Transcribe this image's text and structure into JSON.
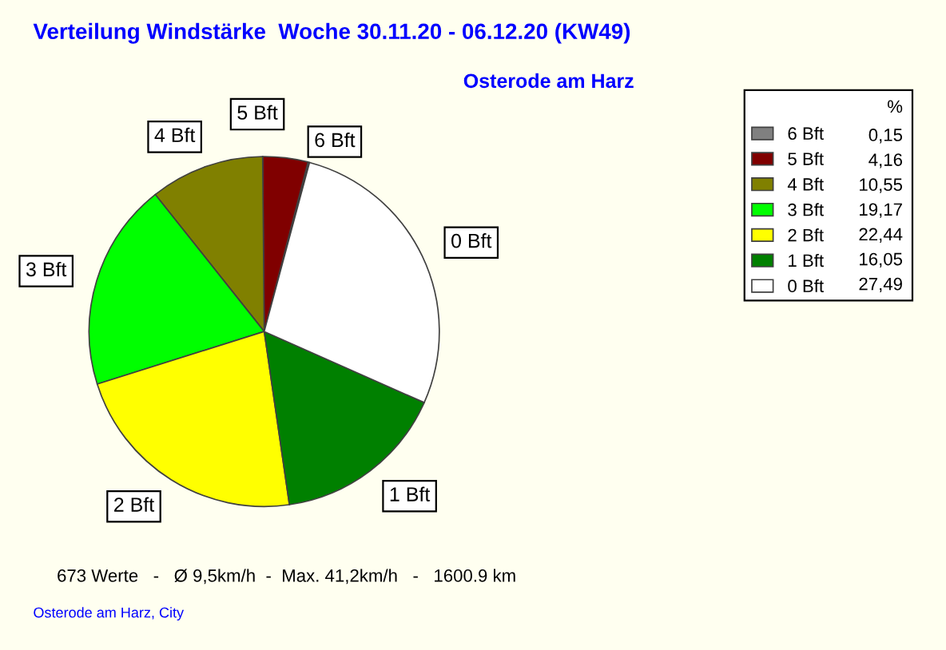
{
  "chart_data": {
    "type": "pie",
    "title": "Verteilung Windstärke  Woche 30.11.20 - 06.12.20 (KW49)",
    "subtitle": "Osterode am Harz",
    "legend_title": "%",
    "categories": [
      "6 Bft",
      "5 Bft",
      "4 Bft",
      "3 Bft",
      "2 Bft",
      "1 Bft",
      "0 Bft"
    ],
    "values": [
      0.15,
      4.16,
      10.55,
      19.17,
      22.44,
      16.05,
      27.49
    ],
    "value_labels": [
      "0,15",
      "4,16",
      "10,55",
      "19,17",
      "22,44",
      "16,05",
      "27,49"
    ],
    "colors": [
      "#808080",
      "#800000",
      "#808000",
      "#00ff00",
      "#ffff00",
      "#008000",
      "#ffffff"
    ],
    "legend": "top right",
    "annotations": [
      "673 Werte   -   Ø 9,5km/h  -  Max. 41,2km/h   -   1600.9 km",
      "Osterode am Harz, City"
    ]
  }
}
